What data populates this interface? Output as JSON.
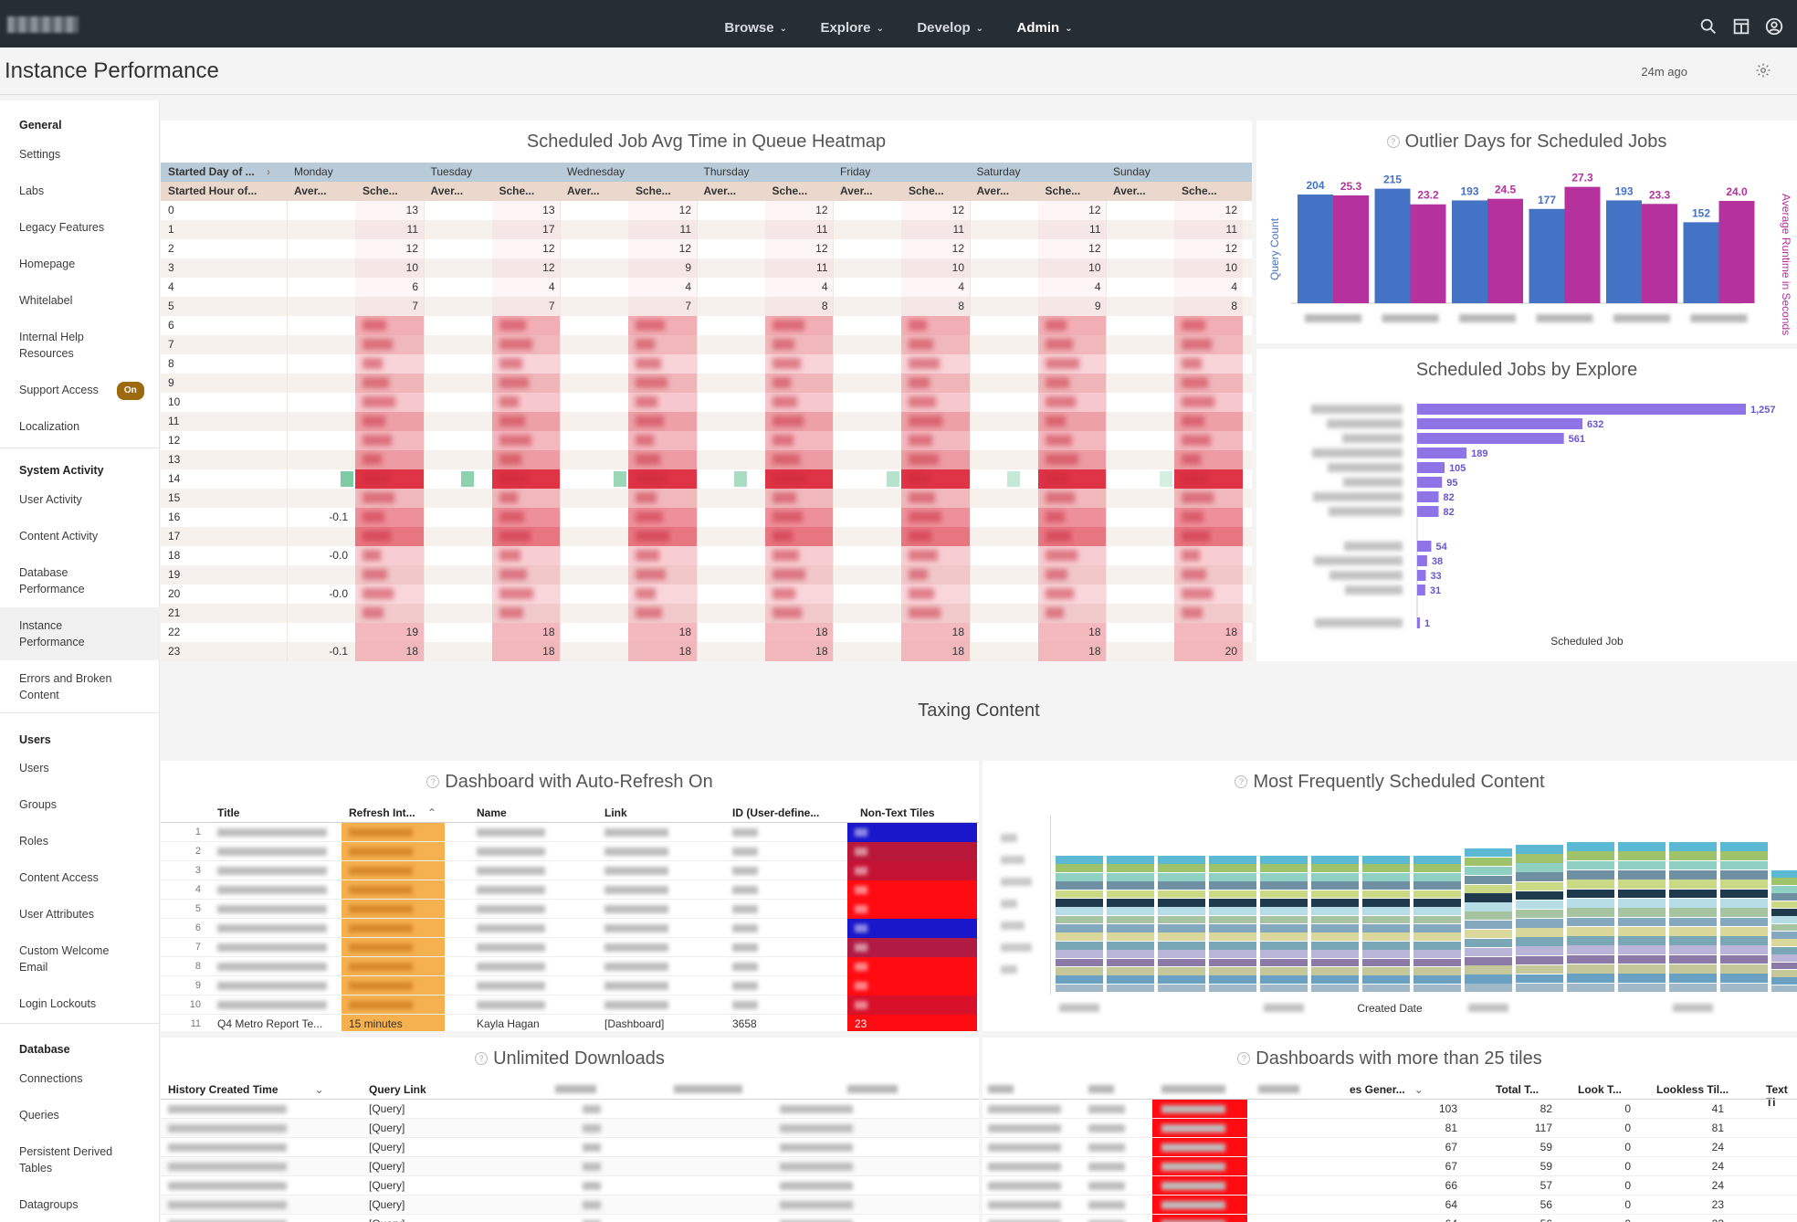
{
  "nav": {
    "items": [
      {
        "label": "Browse"
      },
      {
        "label": "Explore"
      },
      {
        "label": "Develop"
      },
      {
        "label": "Admin"
      }
    ],
    "active": "Admin"
  },
  "header": {
    "title": "Instance Performance",
    "updated": "24m ago"
  },
  "sidebar": {
    "sections": [
      {
        "title": "General",
        "items": [
          "Settings",
          "Labs",
          "Legacy Features",
          "Homepage",
          "Whitelabel",
          "Internal Help Resources",
          "Support Access",
          "Localization"
        ]
      },
      {
        "title": "System Activity",
        "items": [
          "User Activity",
          "Content Activity",
          "Database Performance",
          "Instance Performance",
          "Errors and Broken Content"
        ]
      },
      {
        "title": "Users",
        "items": [
          "Users",
          "Groups",
          "Roles",
          "Content Access",
          "User Attributes",
          "Custom Welcome Email",
          "Login Lockouts"
        ]
      },
      {
        "title": "Database",
        "items": [
          "Connections",
          "Queries",
          "Persistent Derived Tables",
          "Datagroups"
        ]
      }
    ],
    "support_badge": "On",
    "selected": "Instance Performance"
  },
  "heatmap": {
    "title": "Scheduled Job Avg Time in Queue Heatmap",
    "row_header_1": "Started Day of ...",
    "row_header_2": "Started Hour of...",
    "days": [
      "Monday",
      "Tuesday",
      "Wednesday",
      "Thursday",
      "Friday",
      "Saturday",
      "Sunday"
    ],
    "sub_a": "Aver...",
    "sub_b": "Sche...",
    "hours": [
      "0",
      "1",
      "2",
      "3",
      "4",
      "5",
      "6",
      "7",
      "8",
      "9",
      "10",
      "11",
      "12",
      "13",
      "14",
      "15",
      "16",
      "17",
      "18",
      "19",
      "20",
      "21",
      "22",
      "23"
    ],
    "averages": {
      "16": "-0.1",
      "18": "-0.0",
      "20": "-0.0",
      "23": "-0.1"
    },
    "sched": {
      "0": [
        "13",
        "13",
        "12",
        "12",
        "12",
        "12",
        "12"
      ],
      "1": [
        "11",
        "17",
        "11",
        "11",
        "11",
        "11",
        "11"
      ],
      "2": [
        "12",
        "12",
        "12",
        "12",
        "12",
        "12",
        "12"
      ],
      "3": [
        "10",
        "12",
        "9",
        "11",
        "10",
        "10",
        "10"
      ],
      "4": [
        "6",
        "4",
        "4",
        "4",
        "4",
        "4",
        "4"
      ],
      "5": [
        "7",
        "7",
        "7",
        "8",
        "8",
        "9",
        "8"
      ],
      "22": [
        "19",
        "18",
        "18",
        "18",
        "18",
        "18",
        "18"
      ],
      "23": [
        "18",
        "18",
        "18",
        "18",
        "18",
        "18",
        "20"
      ]
    }
  },
  "outlier": {
    "title": "Outlier Days for Scheduled Jobs",
    "ylabel_left": "Query Count",
    "ylabel_right": "Average Runtime in Seconds"
  },
  "explore": {
    "title": "Scheduled Jobs by Explore",
    "xlabel": "Scheduled Job"
  },
  "section_title": "Taxing Content",
  "autorefresh": {
    "title": "Dashboard with Auto-Refresh On",
    "columns": [
      "Title",
      "Refresh Int...",
      "Name",
      "Link",
      "ID (User-define...",
      "Non-Text Tiles"
    ],
    "last_row": {
      "num": "11",
      "title": "Q4 Metro Report Te...",
      "refresh": "15 minutes",
      "name": "Kayla Hagan",
      "link": "[Dashboard]",
      "id": "3658",
      "tiles": "23"
    }
  },
  "frequent": {
    "title": "Most Frequently Scheduled Content",
    "xlabel": "Created Date"
  },
  "downloads": {
    "title": "Unlimited Downloads",
    "columns": [
      "History Created Time",
      "Query Link"
    ],
    "link_label": "[Query]"
  },
  "bigdash": {
    "title": "Dashboards with more than 25 tiles",
    "columns": [
      "es Gener...",
      "Total T...",
      "Look T...",
      "Lookless Til...",
      "Text Ti"
    ],
    "rows": [
      [
        "103",
        "82",
        "0",
        "41"
      ],
      [
        "81",
        "117",
        "0",
        "81"
      ],
      [
        "67",
        "59",
        "0",
        "24"
      ],
      [
        "67",
        "59",
        "0",
        "24"
      ],
      [
        "66",
        "57",
        "0",
        "24"
      ],
      [
        "64",
        "56",
        "0",
        "23"
      ],
      [
        "64",
        "56",
        "0",
        "23"
      ]
    ]
  },
  "chart_data": [
    {
      "type": "bar",
      "title": "Outlier Days for Scheduled Jobs",
      "ylabel": "Query Count",
      "y2label": "Average Runtime in Seconds",
      "series": [
        {
          "name": "Query Count",
          "color": "#4472c4",
          "values": [
            204,
            215,
            193,
            177,
            193,
            152
          ]
        },
        {
          "name": "Average Runtime in Seconds",
          "color": "#b4319e",
          "values": [
            25.3,
            23.2,
            24.5,
            27.3,
            23.3,
            24.0
          ]
        }
      ],
      "labels": [
        [
          "204",
          "25.3"
        ],
        [
          "215",
          "23.2"
        ],
        [
          "193",
          "24.5"
        ],
        [
          "177",
          "27.3"
        ],
        [
          "193",
          "23.3"
        ],
        [
          "152",
          "24.0"
        ]
      ]
    },
    {
      "type": "bar",
      "orientation": "horizontal",
      "title": "Scheduled Jobs by Explore",
      "xlabel": "Scheduled Job",
      "values": [
        1257,
        632,
        561,
        189,
        105,
        95,
        82,
        82,
        54,
        38,
        33,
        31,
        1
      ],
      "value_labels": [
        "1,257",
        "632",
        "561",
        "189",
        "105",
        "95",
        "82",
        "82",
        "54",
        "38",
        "33",
        "31",
        "1"
      ],
      "color": "#8f74e8"
    }
  ]
}
